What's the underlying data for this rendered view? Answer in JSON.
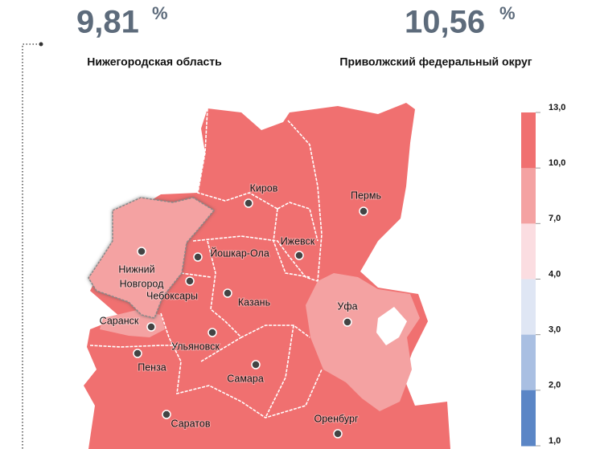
{
  "headlines": [
    {
      "value": "9,81",
      "unit": "%",
      "label": "Нижегородская область"
    },
    {
      "value": "10,56",
      "unit": "%",
      "label": "Приволжский федеральный округ"
    }
  ],
  "cities": [
    "Киров",
    "Пермь",
    "Ижевск",
    "Йошкар-Ола",
    [
      "Нижний",
      "Новгород"
    ],
    "Чебоксары",
    "Казань",
    "Уфа",
    "Саранск",
    "Ульяновск",
    "Пенза",
    "Самара",
    "Саратов",
    "Оренбург"
  ],
  "legend": {
    "ticks": [
      {
        "value": 13,
        "label": "13,0"
      },
      {
        "value": 10,
        "label": "10,0"
      },
      {
        "value": 7,
        "label": "7,0"
      },
      {
        "value": 4,
        "label": "4,0"
      },
      {
        "value": 3,
        "label": "3,0"
      },
      {
        "value": 2,
        "label": "2,0"
      },
      {
        "value": 1,
        "label": "1,0"
      }
    ],
    "colors": [
      "#f07070",
      "#f4a2a2",
      "#fbdde1",
      "#dfe6f4",
      "#a9bfe2",
      "#5b86c6"
    ]
  }
}
